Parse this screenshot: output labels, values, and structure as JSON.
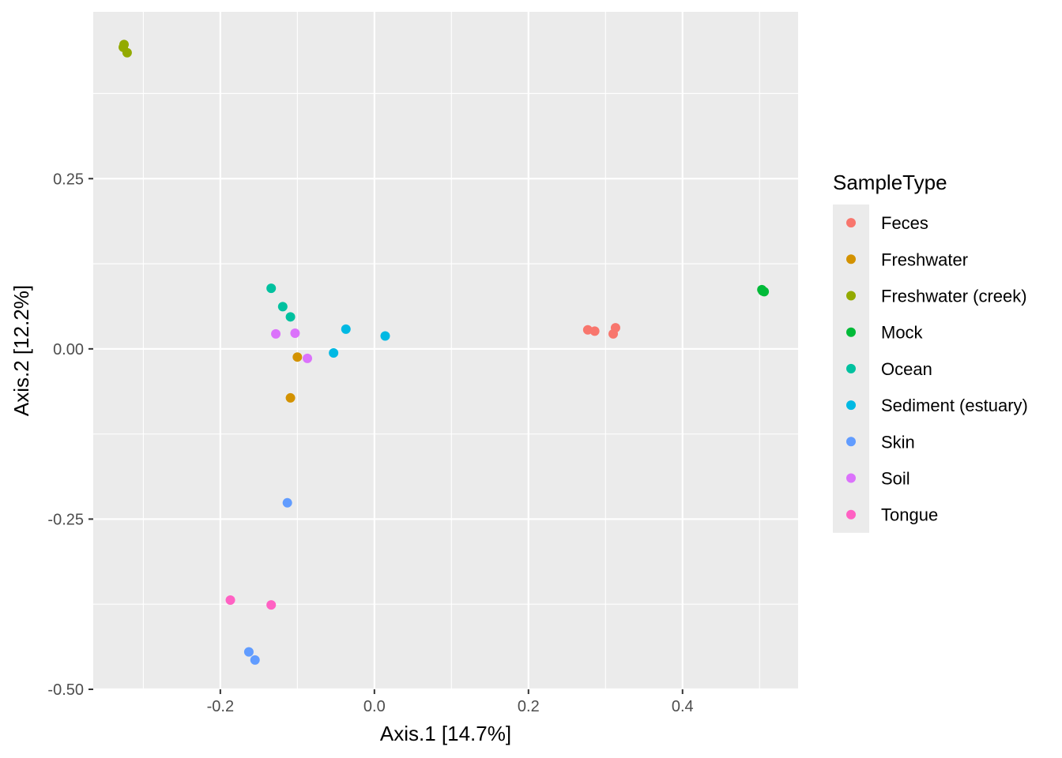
{
  "chart_data": {
    "type": "scatter",
    "title": "",
    "xlabel": "Axis.1   [14.7%]",
    "ylabel": "Axis.2   [12.2%]",
    "xlim": [
      -0.365,
      0.55
    ],
    "ylim": [
      -0.5,
      0.495
    ],
    "xticks": [
      -0.2,
      0.0,
      0.2,
      0.4
    ],
    "xtick_labels": [
      "-0.2",
      "0.0",
      "0.2",
      "0.4"
    ],
    "yticks": [
      -0.5,
      -0.25,
      0.0,
      0.25
    ],
    "ytick_labels": [
      "-0.50",
      "-0.25",
      "0.00",
      "0.25"
    ],
    "grid": true,
    "legend": {
      "title": "SampleType",
      "position": "right"
    },
    "series": [
      {
        "name": "Feces",
        "color": "#F8766D",
        "points": [
          [
            0.277,
            0.028
          ],
          [
            0.286,
            0.026
          ],
          [
            0.31,
            0.022
          ],
          [
            0.313,
            0.031
          ]
        ]
      },
      {
        "name": "Freshwater",
        "color": "#D39200",
        "points": [
          [
            -0.1,
            -0.012
          ],
          [
            -0.109,
            -0.072
          ]
        ]
      },
      {
        "name": "Freshwater (creek)",
        "color": "#93AA00",
        "points": [
          [
            -0.325,
            0.447
          ],
          [
            -0.326,
            0.443
          ],
          [
            -0.321,
            0.435
          ]
        ]
      },
      {
        "name": "Mock",
        "color": "#00BA38",
        "points": [
          [
            0.503,
            0.087
          ],
          [
            0.506,
            0.084
          ],
          [
            0.504,
            0.085
          ]
        ]
      },
      {
        "name": "Ocean",
        "color": "#00C19F",
        "points": [
          [
            -0.134,
            0.089
          ],
          [
            -0.119,
            0.062
          ],
          [
            -0.109,
            0.047
          ]
        ]
      },
      {
        "name": "Sediment (estuary)",
        "color": "#00B9E3",
        "points": [
          [
            -0.037,
            0.029
          ],
          [
            0.014,
            0.019
          ],
          [
            -0.053,
            -0.006
          ]
        ]
      },
      {
        "name": "Skin",
        "color": "#619CFF",
        "points": [
          [
            -0.113,
            -0.226
          ],
          [
            -0.163,
            -0.445
          ],
          [
            -0.155,
            -0.457
          ]
        ]
      },
      {
        "name": "Soil",
        "color": "#DB72FB",
        "points": [
          [
            -0.128,
            0.022
          ],
          [
            -0.103,
            0.023
          ],
          [
            -0.087,
            -0.014
          ]
        ]
      },
      {
        "name": "Tongue",
        "color": "#FF61C3",
        "points": [
          [
            -0.187,
            -0.369
          ],
          [
            -0.134,
            -0.376
          ]
        ]
      }
    ]
  }
}
